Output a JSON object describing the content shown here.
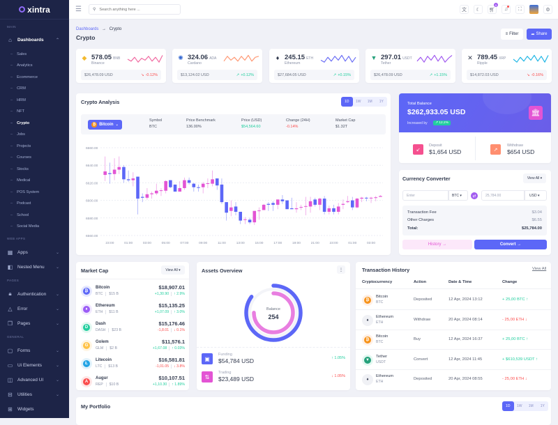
{
  "brand": "xintra",
  "header": {
    "search_placeholder": "Search anything here ...",
    "cart_badge": "5",
    "icons": [
      "translate-icon",
      "moon-icon",
      "cart-icon",
      "bell-icon",
      "fullscreen-icon",
      "avatar",
      "gear-icon"
    ]
  },
  "breadcrumb": {
    "parent": "Dashboards",
    "separator": "→",
    "current": "Crypto"
  },
  "page_title": "Crypto",
  "actions": {
    "filter": "Filter",
    "share": "Share"
  },
  "sidebar": [
    {
      "type": "section",
      "label": "MAIN"
    },
    {
      "type": "item",
      "label": "Dashboards",
      "icon": "⌂",
      "open": true
    },
    {
      "type": "sub",
      "label": "Sales"
    },
    {
      "type": "sub",
      "label": "Analytics"
    },
    {
      "type": "sub",
      "label": "Ecommerce"
    },
    {
      "type": "sub",
      "label": "CRM"
    },
    {
      "type": "sub",
      "label": "HRM"
    },
    {
      "type": "sub",
      "label": "NFT"
    },
    {
      "type": "sub",
      "label": "Crypto",
      "active": true
    },
    {
      "type": "sub",
      "label": "Jobs"
    },
    {
      "type": "sub",
      "label": "Projects"
    },
    {
      "type": "sub",
      "label": "Courses"
    },
    {
      "type": "sub",
      "label": "Stocks"
    },
    {
      "type": "sub",
      "label": "Medical"
    },
    {
      "type": "sub",
      "label": "POS System"
    },
    {
      "type": "sub",
      "label": "Podcast"
    },
    {
      "type": "sub",
      "label": "School"
    },
    {
      "type": "sub",
      "label": "Social Media"
    },
    {
      "type": "section",
      "label": "WEB APPS"
    },
    {
      "type": "item",
      "label": "Apps",
      "icon": "▦",
      "chevron": true
    },
    {
      "type": "item",
      "label": "Nested Menu",
      "icon": "◧",
      "chevron": true
    },
    {
      "type": "section",
      "label": "PAGES"
    },
    {
      "type": "item",
      "label": "Authentication",
      "icon": "🔒︎",
      "chevron": true
    },
    {
      "type": "item",
      "label": "Error",
      "icon": "△",
      "chevron": true
    },
    {
      "type": "item",
      "label": "Pages",
      "icon": "❐",
      "chevron": true
    },
    {
      "type": "section",
      "label": "GENERAL"
    },
    {
      "type": "item",
      "label": "Forms",
      "icon": "▢",
      "chevron": true
    },
    {
      "type": "item",
      "label": "Ui Elements",
      "icon": "▭",
      "chevron": true
    },
    {
      "type": "item",
      "label": "Advanced UI",
      "icon": "◫",
      "chevron": true
    },
    {
      "type": "item",
      "label": "Utilities",
      "icon": "⊟",
      "chevron": true
    },
    {
      "type": "item",
      "label": "Widgets",
      "icon": "⊞"
    }
  ],
  "coins": [
    {
      "price": "578.05",
      "ticker": "BNB",
      "name": "Binance",
      "usd": "$26,478.09 USD",
      "change": "-0.12%",
      "trend": "down",
      "icon": "◆",
      "icon_color": "#f3ba2f",
      "spark_color": "#f16ba2",
      "spark": [
        5,
        3,
        7,
        2,
        6,
        4,
        8,
        3,
        7,
        2,
        9
      ]
    },
    {
      "price": "324.06",
      "ticker": "ADA",
      "name": "Cardano",
      "usd": "$13,124.02 USD",
      "change": "+0.12%",
      "trend": "up",
      "icon": "✺",
      "icon_color": "#3468d1",
      "spark_color": "#ff9a76",
      "spark": [
        3,
        8,
        4,
        7,
        3,
        8,
        4,
        9,
        3,
        7,
        8
      ]
    },
    {
      "price": "245.15",
      "ticker": "ETH",
      "name": "Ethereum",
      "usd": "$27,684.05 USD",
      "change": "+0.15%",
      "trend": "up",
      "icon": "♦",
      "icon_color": "#333b4f",
      "spark_color": "#6c6ff5",
      "spark": [
        4,
        2,
        7,
        3,
        8,
        4,
        9,
        3,
        8,
        2,
        7
      ]
    },
    {
      "price": "297.01",
      "ticker": "USDT",
      "name": "Tether",
      "usd": "$26,478.09 USD",
      "change": "+1.15%",
      "trend": "up",
      "icon": "▼",
      "icon_color": "#26a17b",
      "spark_color": "#a25cf0",
      "spark": [
        3,
        7,
        2,
        8,
        4,
        9,
        3,
        8,
        2,
        6,
        9
      ]
    },
    {
      "price": "789.45",
      "ticker": "XRP",
      "name": "Ripple",
      "usd": "$14,872.03 USD",
      "change": "-0.16%",
      "trend": "down",
      "icon": "✕",
      "icon_color": "#333b4f",
      "spark_color": "#23b7e5",
      "spark": [
        5,
        2,
        7,
        3,
        8,
        4,
        9,
        3,
        8,
        2,
        9
      ]
    }
  ],
  "analysis": {
    "title": "Crypto Analysis",
    "periods": [
      "1D",
      "1W",
      "1M",
      "1Y"
    ],
    "selected_period": "1D",
    "coin": "Bitcoin",
    "info": [
      {
        "label": "Symbol",
        "value": "BTC",
        "tone": "normal"
      },
      {
        "label": "Price Benchmark",
        "value": "136.00%",
        "tone": "normal"
      },
      {
        "label": "Price (USD)",
        "value": "$54,564.60",
        "tone": "green"
      },
      {
        "label": "Change (24H)",
        "value": "-0.14%",
        "tone": "red"
      },
      {
        "label": "Market Cap",
        "value": "$1.32T",
        "tone": "normal"
      }
    ]
  },
  "chart_data": {
    "type": "candlestick",
    "ylim": [
      6560,
      6660
    ],
    "yticks": [
      "6660.00",
      "6640.00",
      "6620.00",
      "6600.00",
      "6580.00",
      "6560.00"
    ],
    "xticks": [
      "23:00",
      "01:00",
      "03:00",
      "05:00",
      "07:00",
      "09:00",
      "11:00",
      "13:00",
      "15:00",
      "17:00",
      "19:00",
      "21:00",
      "23:00",
      "01:00",
      "03:00"
    ],
    "grid": true,
    "up_color": "#e354d4",
    "down_color": "#5c67f7",
    "candles": [
      [
        6629,
        6650,
        6622,
        6633
      ],
      [
        6631,
        6643,
        6619,
        6630
      ],
      [
        6630,
        6648,
        6623,
        6635
      ],
      [
        6635,
        6650,
        6630,
        6638
      ],
      [
        6638,
        6640,
        6620,
        6624
      ],
      [
        6624,
        6634,
        6621,
        6623
      ],
      [
        6623,
        6632,
        6616,
        6625
      ],
      [
        6627,
        6627,
        6584,
        6602
      ],
      [
        6604,
        6608,
        6598,
        6603
      ],
      [
        6603,
        6614,
        6601,
        6607
      ],
      [
        6607,
        6610,
        6602,
        6608
      ],
      [
        6608,
        6619,
        6606,
        6611
      ],
      [
        6611,
        6614,
        6605,
        6611.5
      ],
      [
        6611,
        6623,
        6608,
        6622
      ],
      [
        6623,
        6623,
        6614,
        6615
      ],
      [
        6618,
        6618,
        6610,
        6610
      ],
      [
        6610,
        6622,
        6610,
        6614
      ],
      [
        6614,
        6626,
        6612,
        6623
      ],
      [
        6623,
        6626,
        6618,
        6620
      ],
      [
        6619,
        6620,
        6610,
        6615
      ],
      [
        6615,
        6618,
        6610,
        6614.5
      ],
      [
        6615,
        6621,
        6608,
        6619
      ],
      [
        6619,
        6625,
        6614,
        6619.5
      ],
      [
        6619,
        6634,
        6616,
        6624
      ],
      [
        6625,
        6625,
        6612,
        6617
      ],
      [
        6618,
        6625,
        6596,
        6598
      ],
      [
        6598,
        6598,
        6577,
        6586
      ],
      [
        6588,
        6600,
        6582,
        6592
      ],
      [
        6593,
        6598,
        6583,
        6587
      ],
      [
        6587,
        6587,
        6573,
        6577
      ],
      [
        6578,
        6581,
        6573,
        6578.5
      ],
      [
        6578,
        6580,
        6573,
        6575
      ],
      [
        6575,
        6588,
        6572,
        6588
      ],
      [
        6588,
        6592,
        6578,
        6588.5
      ],
      [
        6589,
        6596,
        6589,
        6595
      ],
      [
        6596,
        6598,
        6588,
        6595
      ],
      [
        6597,
        6599,
        6588,
        6595
      ],
      [
        6595,
        6601,
        6590,
        6601
      ],
      [
        6601,
        6606,
        6596,
        6599
      ],
      [
        6600,
        6600,
        6590,
        6590
      ],
      [
        6591,
        6603,
        6590,
        6590
      ],
      [
        6590,
        6598,
        6586,
        6591
      ],
      [
        6592,
        6595,
        6589,
        6592.5
      ],
      [
        6593,
        6604,
        6583,
        6593.5
      ],
      [
        6593,
        6604,
        6586,
        6599
      ],
      [
        6601,
        6603,
        6593,
        6595
      ],
      [
        6595,
        6603,
        6589,
        6602
      ],
      [
        6602,
        6605,
        6584,
        6587
      ],
      [
        6587,
        6594,
        6584,
        6591
      ],
      [
        6591,
        6595,
        6584,
        6587
      ],
      [
        6587,
        6597,
        6584,
        6593
      ],
      [
        6595,
        6601,
        6590,
        6596
      ],
      [
        6598,
        6605,
        6597,
        6599
      ],
      [
        6600,
        6604,
        6589,
        6592
      ],
      [
        6592,
        6603,
        6591,
        6602
      ],
      [
        6602,
        6604,
        6598,
        6603
      ],
      [
        6603,
        6604,
        6599,
        6602.5
      ],
      [
        6602.5,
        6604,
        6597,
        6603
      ],
      [
        6603,
        6605,
        6599,
        6603.5
      ],
      [
        6604,
        6606,
        6604,
        6605
      ]
    ]
  },
  "balance": {
    "label": "Total Balance",
    "amount": "$262,933.05 USD",
    "increased_label": "Increased by",
    "increase": "12.2%",
    "deposit_label": "Deposit",
    "deposit": "$1,654 USD",
    "withdraw_label": "Withdraw",
    "withdraw": "$654 USD"
  },
  "converter": {
    "title": "Currency Converter",
    "view_all": "View All",
    "from_placeholder": "Enter",
    "from_currency": "BTC",
    "to_value": "25,784.00",
    "to_currency": "USD",
    "fees": [
      {
        "label": "Transaction Fee",
        "value": "$3.04"
      },
      {
        "label": "Other Charges",
        "value": "$6.55"
      }
    ],
    "total_label": "Total:",
    "total": "$25,784.00",
    "history": "History →",
    "convert": "Convert →"
  },
  "market_cap": {
    "title": "Market Cap",
    "view_all": "View All",
    "items": [
      {
        "name": "Bitcoin",
        "ticker": "BTC",
        "cap": "$15 B",
        "price": "$18,907.01",
        "delta": "+1,30.90",
        "pct": "↑ 2.9%",
        "up": true,
        "color": "#5c67f7",
        "bg": "#e6e8fe",
        "icon": "₿"
      },
      {
        "name": "Ethereum",
        "ticker": "ETH",
        "cap": "$11 B",
        "price": "$15,135.25",
        "delta": "+1,07.09",
        "pct": "↑ 3.0%",
        "up": true,
        "color": "#9b5cf6",
        "bg": "#f1e8fe",
        "icon": "♦"
      },
      {
        "name": "Dash",
        "ticker": "DASH",
        "cap": "$23 B",
        "price": "$15,176.46",
        "delta": "-1,8.01",
        "pct": "↓ 0.1%",
        "up": false,
        "color": "#21ce9e",
        "bg": "#e2f8f1",
        "icon": "D"
      },
      {
        "name": "Golem",
        "ticker": "GLM",
        "cap": "$2 B",
        "price": "$11,576.1",
        "delta": "+1,67.08",
        "pct": "↑ 0.03%",
        "up": true,
        "color": "#ffc246",
        "bg": "#fff5e3",
        "icon": "G"
      },
      {
        "name": "Litecoin",
        "ticker": "LTC",
        "cap": "$13 B",
        "price": "$16,581.81",
        "delta": "-1,01.05",
        "pct": "↓ 3.8%",
        "up": false,
        "color": "#23a4e5",
        "bg": "#e2f3fc",
        "icon": "Ł"
      },
      {
        "name": "Augur",
        "ticker": "REP",
        "cap": "$10 B",
        "price": "$10,107.51",
        "delta": "+1,10.30",
        "pct": "↑ 1.89%",
        "up": true,
        "color": "#fb4d4d",
        "bg": "#fee6e6",
        "icon": "A"
      }
    ]
  },
  "assets": {
    "title": "Assets Overview",
    "center_label": "Balance",
    "center_value": "254",
    "rings": [
      {
        "fraction": 0.85,
        "color": "#5c67f7"
      },
      {
        "fraction": 0.75,
        "color": "#e87ee0"
      }
    ],
    "items": [
      {
        "label": "Funding",
        "value": "$54,784 USD",
        "change": "↑ 1.05%",
        "up": true,
        "color": "#5c67f7",
        "icon": "▣"
      },
      {
        "label": "Trading",
        "value": "$23,489 USD",
        "change": "↓ 1.05%",
        "up": false,
        "color": "#e354d4",
        "icon": "⇅"
      }
    ]
  },
  "transactions": {
    "title": "Transaction History",
    "view_all": "View All",
    "columns": [
      "Cryptocurrency",
      "Action",
      "Date & Time",
      "Change"
    ],
    "rows": [
      {
        "name": "Bitcoin",
        "ticker": "BTC",
        "action": "Deposited",
        "date": "12 Apr, 2024 13:12",
        "change": "+ 25,00 BTC ↑",
        "up": true,
        "color": "#f7931a",
        "bg": "#fff0e6",
        "icon": "₿"
      },
      {
        "name": "Ethereum",
        "ticker": "ETH",
        "action": "Withdraw",
        "date": "20 Apr, 2024 08:14",
        "change": "- 25,00 ETH ↓",
        "up": false,
        "color": "#333b4f",
        "bg": "#f0f1f5",
        "icon": "♦"
      },
      {
        "name": "Bitcoin",
        "ticker": "BTC",
        "action": "Buy",
        "date": "12 Apr, 2024 16:37",
        "change": "+ 25,00 BTC ↑",
        "up": true,
        "color": "#f7931a",
        "bg": "#fff0e6",
        "icon": "₿"
      },
      {
        "name": "Tether",
        "ticker": "USDT",
        "action": "Convert",
        "date": "12 Apr, 2024 11:45",
        "change": "+ $610,539 USDT ↑",
        "up": true,
        "color": "#26a17b",
        "bg": "#e2f8f1",
        "icon": "▼"
      },
      {
        "name": "Ethereum",
        "ticker": "ETH",
        "action": "Deposited",
        "date": "20 Apr, 2024 08:55",
        "change": "- 25,00 ETH ↓",
        "up": false,
        "color": "#333b4f",
        "bg": "#f0f1f5",
        "icon": "♦"
      }
    ]
  },
  "portfolio": {
    "title": "My Portfolio",
    "periods": [
      "1D",
      "1W",
      "1M",
      "1Y"
    ],
    "selected_period": "1D"
  },
  "colors": {
    "primary": "#5c67f7",
    "secondary": "#e354d4",
    "success": "#21ce9e",
    "danger": "#fb4d4d",
    "sidebar": "#1d2447"
  }
}
